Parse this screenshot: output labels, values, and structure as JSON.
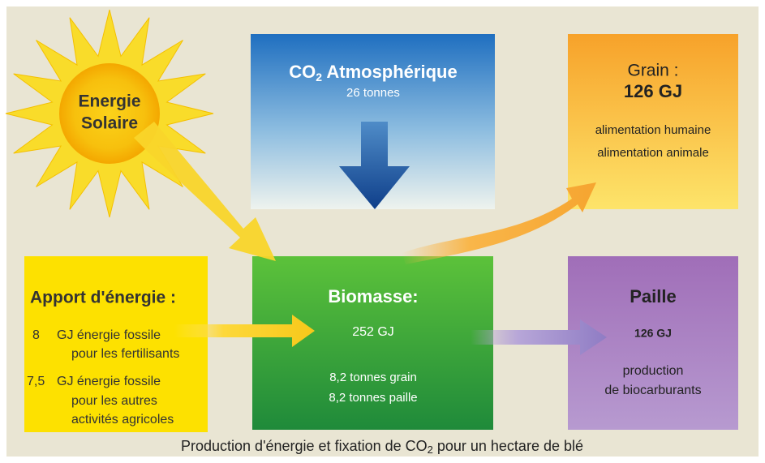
{
  "sun": {
    "lines": [
      "Energie",
      "Solaire"
    ]
  },
  "co2_box": {
    "title": [
      "CO",
      "2",
      " Atmosphérique"
    ],
    "amount": "26 tonnes"
  },
  "grain_box": {
    "title": "Grain :",
    "energy": "126 GJ",
    "uses": [
      "alimentation humaine",
      "alimentation animale"
    ]
  },
  "input_box": {
    "title": "Apport d'énergie :",
    "items": [
      {
        "amount": "8",
        "lines": [
          "GJ énergie fossile",
          "pour les fertilisants"
        ]
      },
      {
        "amount": "7,5",
        "lines": [
          "GJ énergie fossile",
          "pour les autres",
          "activités agricoles"
        ]
      }
    ]
  },
  "biomass_box": {
    "title": "Biomasse:",
    "energy": "252 GJ",
    "details": [
      "8,2 tonnes grain",
      "8,2 tonnes paille"
    ]
  },
  "straw_box": {
    "title": "Paille",
    "energy": "126 GJ",
    "uses": [
      "production",
      "de biocarburants"
    ]
  },
  "caption": [
    "Production d'énergie et fixation de CO",
    "2",
    " pour un hectare de blé"
  ]
}
